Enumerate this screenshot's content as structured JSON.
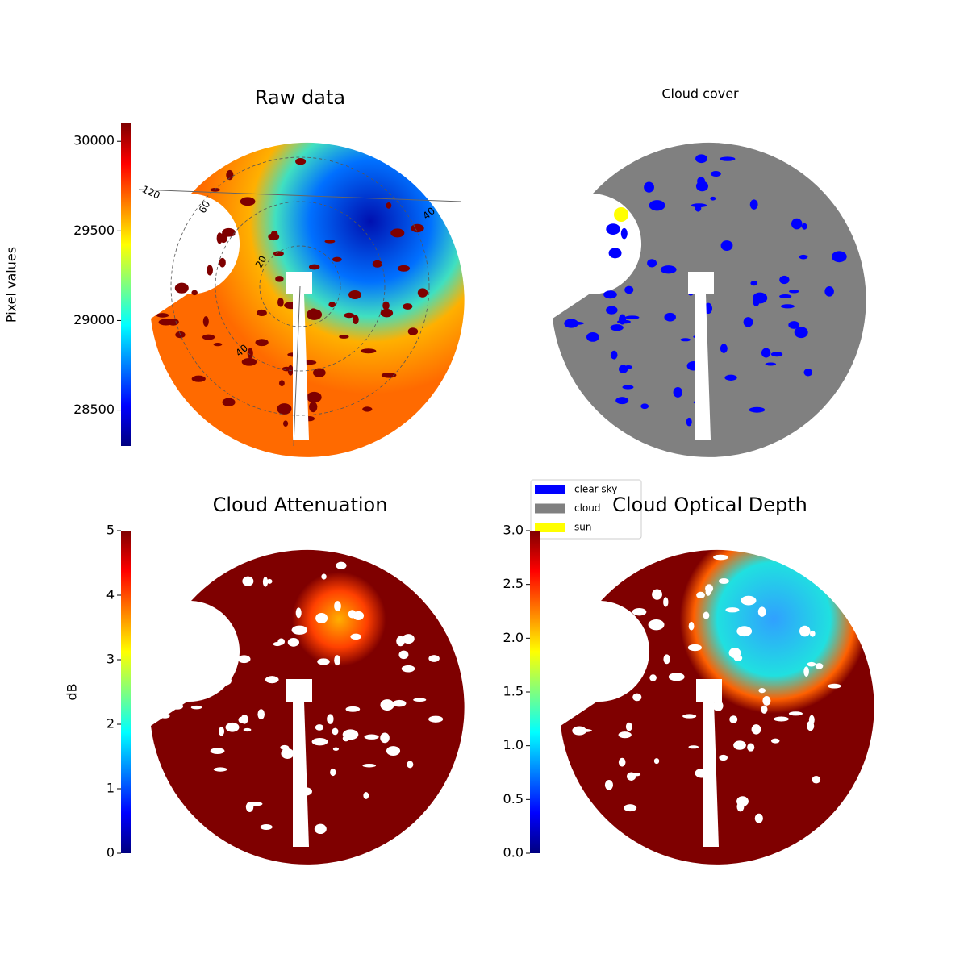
{
  "chart_data": [
    {
      "type": "image",
      "title": "Raw data",
      "colormap": "jet",
      "colorbar_label": "Pixel values",
      "ylim": [
        28300,
        30100
      ],
      "yticks": [
        28500,
        29000,
        29500,
        30000
      ],
      "annotations": [
        "120",
        "60",
        "40",
        "20",
        "40"
      ]
    },
    {
      "type": "image",
      "title": "Cloud cover",
      "series": [
        {
          "name": "clear sky",
          "color": "#0000ff"
        },
        {
          "name": "cloud",
          "color": "#808080"
        },
        {
          "name": "sun",
          "color": "#ffff00"
        }
      ]
    },
    {
      "type": "image",
      "title": "Cloud Attenuation",
      "colormap": "jet",
      "colorbar_label": "dB",
      "ylim": [
        0,
        5
      ],
      "yticks": [
        0,
        1,
        2,
        3,
        4,
        5
      ]
    },
    {
      "type": "image",
      "title": "Cloud Optical Depth",
      "colormap": "jet",
      "ylim": [
        0,
        3
      ],
      "yticks": [
        {
          "value": 0,
          "label": "0.0"
        },
        {
          "value": 0.5,
          "label": "0.5"
        },
        {
          "value": 1,
          "label": "1.0"
        },
        {
          "value": 1.5,
          "label": "1.5"
        },
        {
          "value": 2,
          "label": "2.0"
        },
        {
          "value": 2.5,
          "label": "2.5"
        },
        {
          "value": 3,
          "label": "3.0"
        }
      ]
    }
  ]
}
